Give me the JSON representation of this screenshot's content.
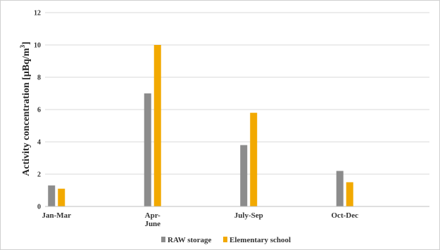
{
  "chart_data": {
    "type": "bar",
    "title": "",
    "xlabel": "",
    "ylabel": "Activity concentration [µBq/m³]",
    "ylabel_main": "Activity concentration [µBq/m",
    "ylabel_sup": "3",
    "ylabel_end": "]",
    "ylim": [
      0,
      12
    ],
    "yticks": [
      0,
      2,
      4,
      6,
      8,
      10,
      12
    ],
    "grid": true,
    "legend_position": "bottom",
    "categories": [
      "Jan-Mar",
      "Apr-June",
      "July-Sep",
      "Oct-Dec"
    ],
    "category_lines": [
      [
        "Jan-Mar"
      ],
      [
        "Apr-",
        "June"
      ],
      [
        "July-Sep"
      ],
      [
        "Oct-Dec"
      ]
    ],
    "series": [
      {
        "name": "RAW storage",
        "color": "#8c8c8c",
        "values": [
          1.3,
          7.0,
          3.8,
          2.2
        ]
      },
      {
        "name": "Elementary school",
        "color": "#f2a900",
        "values": [
          1.1,
          10.0,
          5.8,
          1.5
        ]
      }
    ]
  }
}
